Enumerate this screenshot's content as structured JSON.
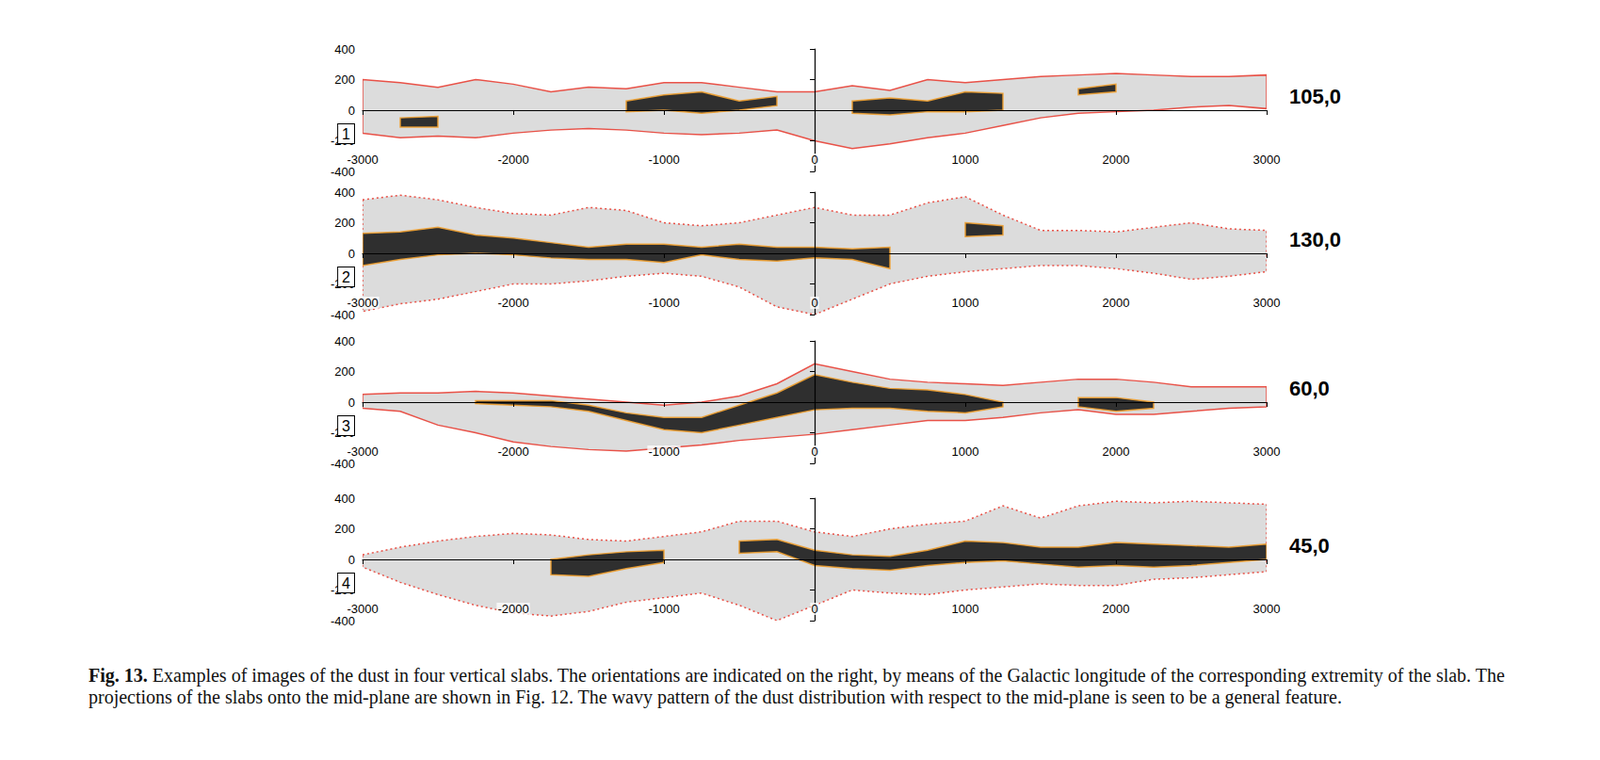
{
  "chart_data": [
    {
      "type": "band",
      "label": "105,0",
      "panel": "1",
      "grid": false,
      "x": [
        -3000,
        -2750,
        -2500,
        -2250,
        -2000,
        -1750,
        -1500,
        -1250,
        -1000,
        -750,
        -500,
        -250,
        0,
        250,
        500,
        750,
        1000,
        1250,
        1500,
        1750,
        2000,
        2250,
        2500,
        2750,
        3000
      ],
      "xlim": [
        -3000,
        3000
      ],
      "xticks": [
        -3000,
        -2000,
        -1000,
        0,
        1000,
        2000,
        3000
      ],
      "ylim": [
        -400,
        400
      ],
      "yticks": [
        -400,
        -200,
        0,
        200,
        400
      ],
      "outer": {
        "color": "#e8362a",
        "line_style": "solid",
        "upper": [
          200,
          180,
          150,
          200,
          170,
          120,
          150,
          140,
          180,
          180,
          150,
          120,
          120,
          160,
          130,
          200,
          180,
          200,
          220,
          230,
          240,
          230,
          220,
          220,
          230
        ],
        "lower": [
          -150,
          -180,
          -170,
          -180,
          -150,
          -130,
          -120,
          -130,
          -150,
          -160,
          -150,
          -130,
          -200,
          -250,
          -220,
          -180,
          -150,
          -100,
          -50,
          -20,
          -10,
          0,
          20,
          30,
          10
        ]
      },
      "dense": {
        "color": "#f0a030",
        "line_style": "solid",
        "upper": [
          null,
          -50,
          -40,
          null,
          null,
          null,
          null,
          60,
          100,
          120,
          60,
          90,
          null,
          60,
          80,
          60,
          120,
          110,
          null,
          140,
          170,
          null,
          null,
          null,
          null
        ],
        "lower": [
          null,
          -110,
          -110,
          null,
          null,
          null,
          null,
          -10,
          0,
          -20,
          0,
          30,
          null,
          -20,
          -30,
          -10,
          -10,
          0,
          null,
          100,
          120,
          null,
          null,
          null,
          null
        ]
      }
    },
    {
      "type": "band",
      "label": "130,0",
      "panel": "2",
      "grid": false,
      "x": [
        -3000,
        -2750,
        -2500,
        -2250,
        -2000,
        -1750,
        -1500,
        -1250,
        -1000,
        -750,
        -500,
        -250,
        0,
        250,
        500,
        750,
        1000,
        1250,
        1500,
        1750,
        2000,
        2250,
        2500,
        2750,
        3000
      ],
      "xlim": [
        -3000,
        3000
      ],
      "xticks": [
        -3000,
        -2000,
        -1000,
        0,
        1000,
        2000,
        3000
      ],
      "ylim": [
        -400,
        400
      ],
      "yticks": [
        -400,
        -200,
        0,
        200,
        400
      ],
      "outer": {
        "color": "#e8362a",
        "line_style": "dotted",
        "upper": [
          350,
          380,
          350,
          300,
          260,
          250,
          300,
          280,
          200,
          180,
          200,
          250,
          300,
          250,
          250,
          330,
          370,
          250,
          150,
          150,
          140,
          170,
          200,
          160,
          150
        ],
        "lower": [
          -380,
          -330,
          -300,
          -250,
          -200,
          -200,
          -180,
          -150,
          -130,
          -150,
          -220,
          -350,
          -400,
          -300,
          -200,
          -150,
          -120,
          -100,
          -80,
          -80,
          -100,
          -130,
          -170,
          -150,
          -120
        ]
      },
      "dense": {
        "color": "#f0a030",
        "line_style": "solid",
        "upper": [
          130,
          140,
          170,
          120,
          100,
          70,
          40,
          60,
          60,
          40,
          60,
          40,
          40,
          30,
          40,
          null,
          200,
          180,
          null,
          null,
          null,
          null,
          null,
          null,
          null
        ],
        "lower": [
          -80,
          -40,
          -10,
          0,
          -10,
          -30,
          -40,
          -40,
          -60,
          -10,
          -40,
          -50,
          -30,
          -40,
          -100,
          null,
          110,
          120,
          null,
          null,
          null,
          null,
          null,
          null,
          null
        ]
      }
    },
    {
      "type": "band",
      "label": "60,0",
      "panel": "3",
      "grid": false,
      "x": [
        -3000,
        -2750,
        -2500,
        -2250,
        -2000,
        -1750,
        -1500,
        -1250,
        -1000,
        -750,
        -500,
        -250,
        0,
        250,
        500,
        750,
        1000,
        1250,
        1500,
        1750,
        2000,
        2250,
        2500,
        2750,
        3000
      ],
      "xlim": [
        -3000,
        3000
      ],
      "xticks": [
        -3000,
        -2000,
        -1000,
        0,
        1000,
        2000,
        3000
      ],
      "ylim": [
        -400,
        400
      ],
      "yticks": [
        -400,
        -200,
        0,
        200,
        400
      ],
      "outer": {
        "color": "#e8362a",
        "line_style": "solid",
        "upper": [
          50,
          60,
          60,
          70,
          60,
          40,
          20,
          0,
          -20,
          0,
          40,
          120,
          250,
          200,
          150,
          130,
          120,
          110,
          130,
          150,
          150,
          130,
          100,
          100,
          100
        ],
        "lower": [
          -40,
          -60,
          -150,
          -200,
          -260,
          -290,
          -310,
          -320,
          -300,
          -280,
          -250,
          -230,
          -210,
          -180,
          -150,
          -120,
          -120,
          -100,
          -70,
          -50,
          -80,
          -80,
          -60,
          -40,
          -30
        ]
      },
      "dense": {
        "color": "#f0a030",
        "line_style": "solid",
        "upper": [
          null,
          null,
          null,
          10,
          10,
          10,
          -20,
          -70,
          -100,
          -100,
          -20,
          60,
          180,
          130,
          90,
          80,
          50,
          0,
          null,
          30,
          30,
          0,
          null,
          null,
          null
        ],
        "lower": [
          null,
          null,
          null,
          -10,
          -20,
          -30,
          -60,
          -120,
          -180,
          -200,
          -150,
          -100,
          -50,
          -40,
          -40,
          -60,
          -70,
          -30,
          null,
          -30,
          -60,
          -40,
          null,
          null,
          null
        ]
      }
    },
    {
      "type": "band",
      "label": "45,0",
      "panel": "4",
      "grid": false,
      "x": [
        -3000,
        -2750,
        -2500,
        -2250,
        -2000,
        -1750,
        -1500,
        -1250,
        -1000,
        -750,
        -500,
        -250,
        0,
        250,
        500,
        750,
        1000,
        1250,
        1500,
        1750,
        2000,
        2250,
        2500,
        2750,
        3000
      ],
      "xlim": [
        -3000,
        3000
      ],
      "xticks": [
        -3000,
        -2000,
        -1000,
        0,
        1000,
        2000,
        3000
      ],
      "ylim": [
        -400,
        400
      ],
      "yticks": [
        -400,
        -200,
        0,
        200,
        400
      ],
      "outer": {
        "color": "#e8362a",
        "line_style": "dotted",
        "upper": [
          30,
          80,
          120,
          150,
          170,
          160,
          130,
          120,
          150,
          180,
          250,
          250,
          180,
          150,
          200,
          230,
          250,
          350,
          270,
          350,
          380,
          370,
          380,
          370,
          360
        ],
        "lower": [
          -50,
          -150,
          -230,
          -300,
          -350,
          -370,
          -340,
          -280,
          -250,
          -220,
          -300,
          -400,
          -300,
          -200,
          -220,
          -230,
          -200,
          -180,
          -160,
          -170,
          -170,
          -130,
          -120,
          -100,
          -80
        ]
      },
      "dense": {
        "color": "#f0a030",
        "line_style": "solid",
        "upper": [
          null,
          null,
          null,
          null,
          null,
          0,
          30,
          50,
          60,
          null,
          120,
          130,
          60,
          30,
          20,
          60,
          120,
          110,
          80,
          80,
          110,
          100,
          90,
          80,
          100
        ],
        "lower": [
          null,
          null,
          null,
          null,
          null,
          -100,
          -110,
          -60,
          -20,
          null,
          40,
          50,
          -40,
          -60,
          -70,
          -40,
          -20,
          -10,
          -30,
          -50,
          -40,
          -50,
          -40,
          -20,
          0
        ]
      }
    }
  ],
  "caption": {
    "label": "Fig. 13.",
    "text": "Examples of images of the dust in four vertical slabs. The orientations are indicated on the right, by means of the Galactic longitude of the corresponding extremity of the slab. The projections of the slabs onto the mid-plane are shown in Fig. 12. The wavy pattern of the dust distribution with respect to the mid-plane is seen to be a general feature."
  }
}
